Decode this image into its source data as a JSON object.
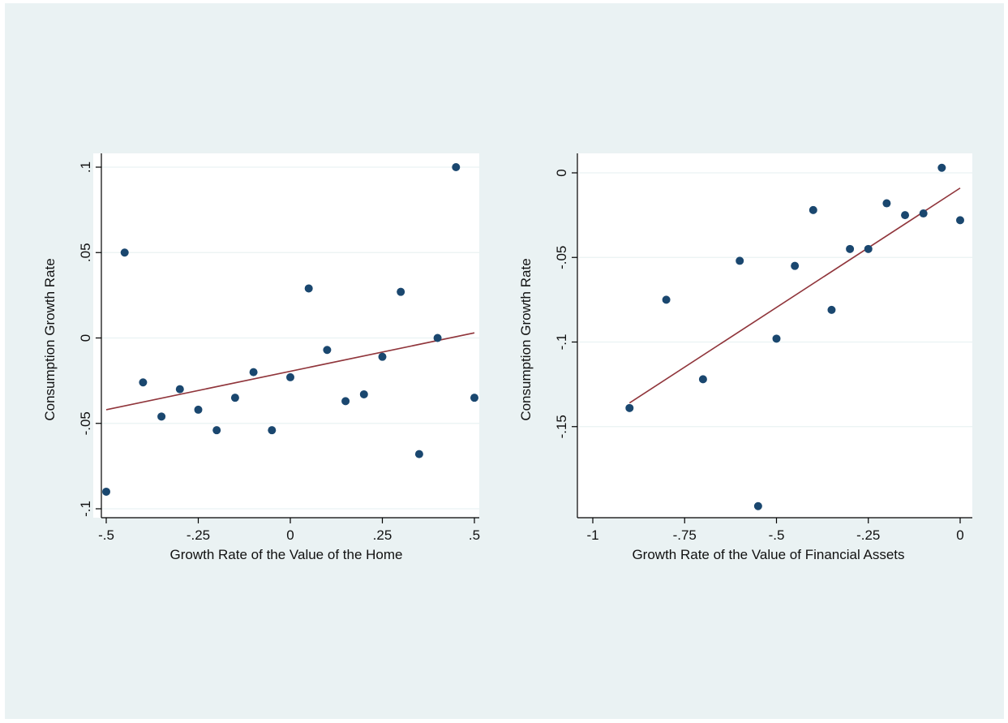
{
  "colors": {
    "background": "#eaf2f3",
    "plot_region": "#ffffff",
    "marker": "#1a476f",
    "fit_line": "#90353b",
    "gridline": "#eaf2f3"
  },
  "chart_data": [
    {
      "type": "scatter",
      "xlabel": "Growth Rate of the Value of the Home",
      "ylabel": "Consumption Growth Rate",
      "xlim": [
        -0.5,
        0.5
      ],
      "ylim": [
        -0.1,
        0.1
      ],
      "xticks": [
        {
          "value": -0.5,
          "label": "-.5"
        },
        {
          "value": -0.25,
          "label": "-.25"
        },
        {
          "value": 0,
          "label": "0"
        },
        {
          "value": 0.25,
          "label": ".25"
        },
        {
          "value": 0.5,
          "label": ".5"
        }
      ],
      "yticks": [
        {
          "value": -0.1,
          "label": "-.1"
        },
        {
          "value": -0.05,
          "label": "-.05"
        },
        {
          "value": 0,
          "label": "0"
        },
        {
          "value": 0.05,
          "label": ".05"
        },
        {
          "value": 0.1,
          "label": ".1"
        }
      ],
      "grid": true,
      "points": [
        {
          "x": -0.5,
          "y": -0.09
        },
        {
          "x": -0.45,
          "y": 0.05
        },
        {
          "x": -0.4,
          "y": -0.026
        },
        {
          "x": -0.35,
          "y": -0.046
        },
        {
          "x": -0.3,
          "y": -0.03
        },
        {
          "x": -0.25,
          "y": -0.042
        },
        {
          "x": -0.2,
          "y": -0.054
        },
        {
          "x": -0.15,
          "y": -0.035
        },
        {
          "x": -0.1,
          "y": -0.02
        },
        {
          "x": -0.05,
          "y": -0.054
        },
        {
          "x": 0.0,
          "y": -0.023
        },
        {
          "x": 0.05,
          "y": 0.029
        },
        {
          "x": 0.1,
          "y": -0.007
        },
        {
          "x": 0.15,
          "y": -0.037
        },
        {
          "x": 0.2,
          "y": -0.033
        },
        {
          "x": 0.25,
          "y": -0.011
        },
        {
          "x": 0.3,
          "y": 0.027
        },
        {
          "x": 0.35,
          "y": -0.068
        },
        {
          "x": 0.4,
          "y": 0.0
        },
        {
          "x": 0.45,
          "y": 0.1
        },
        {
          "x": 0.5,
          "y": -0.035
        }
      ],
      "fit_line": [
        {
          "x": -0.5,
          "y": -0.042
        },
        {
          "x": 0.5,
          "y": 0.003
        }
      ]
    },
    {
      "type": "scatter",
      "xlabel": "Growth Rate of the Value of Financial Assets",
      "ylabel": "Consumption Growth Rate",
      "xlim": [
        -1.0,
        0.0
      ],
      "ylim": [
        -0.2,
        0.0
      ],
      "xticks": [
        {
          "value": -1.0,
          "label": "-1"
        },
        {
          "value": -0.75,
          "label": "-.75"
        },
        {
          "value": -0.5,
          "label": "-.5"
        },
        {
          "value": -0.25,
          "label": "-.25"
        },
        {
          "value": 0,
          "label": "0"
        }
      ],
      "yticks": [
        {
          "value": -0.15,
          "label": "-.15"
        },
        {
          "value": -0.1,
          "label": "-.1"
        },
        {
          "value": -0.05,
          "label": "-.05"
        },
        {
          "value": 0,
          "label": "0"
        }
      ],
      "grid": true,
      "points": [
        {
          "x": -0.9,
          "y": -0.139
        },
        {
          "x": -0.8,
          "y": -0.075
        },
        {
          "x": -0.7,
          "y": -0.122
        },
        {
          "x": -0.6,
          "y": -0.052
        },
        {
          "x": -0.55,
          "y": -0.197
        },
        {
          "x": -0.5,
          "y": -0.098
        },
        {
          "x": -0.45,
          "y": -0.055
        },
        {
          "x": -0.4,
          "y": -0.022
        },
        {
          "x": -0.35,
          "y": -0.081
        },
        {
          "x": -0.3,
          "y": -0.045
        },
        {
          "x": -0.25,
          "y": -0.045
        },
        {
          "x": -0.2,
          "y": -0.018
        },
        {
          "x": -0.15,
          "y": -0.025
        },
        {
          "x": -0.1,
          "y": -0.024
        },
        {
          "x": -0.05,
          "y": 0.003
        },
        {
          "x": 0.0,
          "y": -0.028
        }
      ],
      "fit_line": [
        {
          "x": -0.9,
          "y": -0.136
        },
        {
          "x": 0.0,
          "y": -0.009
        }
      ]
    }
  ]
}
